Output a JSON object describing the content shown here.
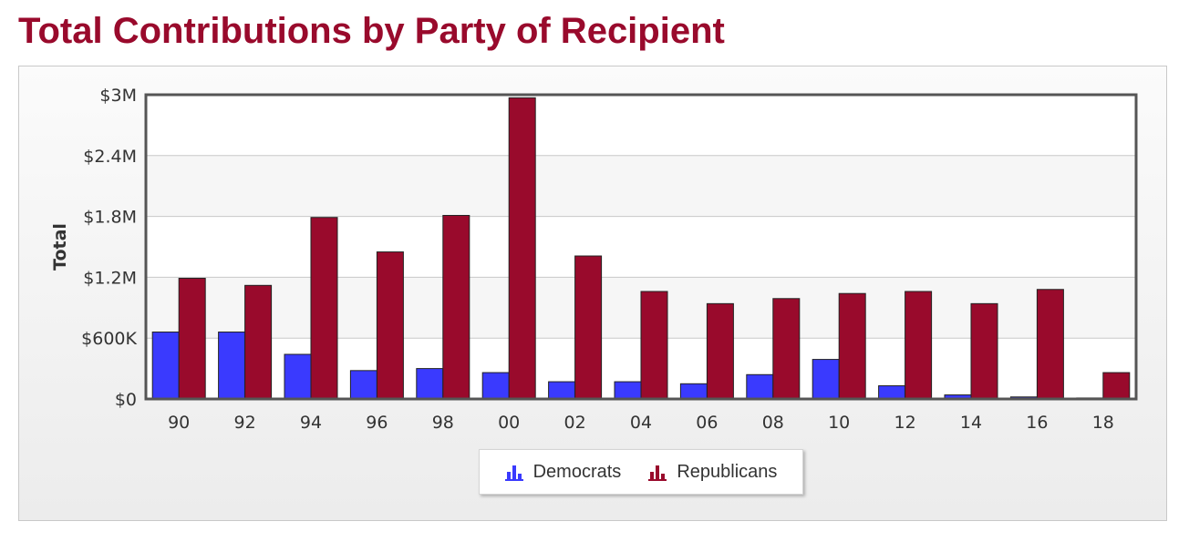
{
  "page": {
    "title": "Total Contributions by Party of Recipient"
  },
  "chart_data": {
    "type": "bar",
    "title": "Total Contributions by Party of Recipient",
    "xlabel": "",
    "ylabel": "Total",
    "ylim": [
      0,
      3000000
    ],
    "y_ticks": [
      {
        "value": 0,
        "label": "$0"
      },
      {
        "value": 600000,
        "label": "$600K"
      },
      {
        "value": 1200000,
        "label": "$1.2M"
      },
      {
        "value": 1800000,
        "label": "$1.8M"
      },
      {
        "value": 2400000,
        "label": "$2.4M"
      },
      {
        "value": 3000000,
        "label": "$3M"
      }
    ],
    "categories": [
      "90",
      "92",
      "94",
      "96",
      "98",
      "00",
      "02",
      "04",
      "06",
      "08",
      "10",
      "12",
      "14",
      "16",
      "18"
    ],
    "series": [
      {
        "name": "Democrats",
        "color": "#3a3afe",
        "values": [
          660000,
          660000,
          440000,
          280000,
          300000,
          260000,
          170000,
          170000,
          150000,
          240000,
          390000,
          130000,
          40000,
          20000,
          10000
        ]
      },
      {
        "name": "Republicans",
        "color": "#990a2c",
        "values": [
          1190000,
          1120000,
          1790000,
          1450000,
          1810000,
          2970000,
          1410000,
          1060000,
          940000,
          990000,
          1040000,
          1060000,
          940000,
          1080000,
          260000
        ]
      }
    ],
    "grid": true,
    "legend_position": "bottom-center"
  }
}
